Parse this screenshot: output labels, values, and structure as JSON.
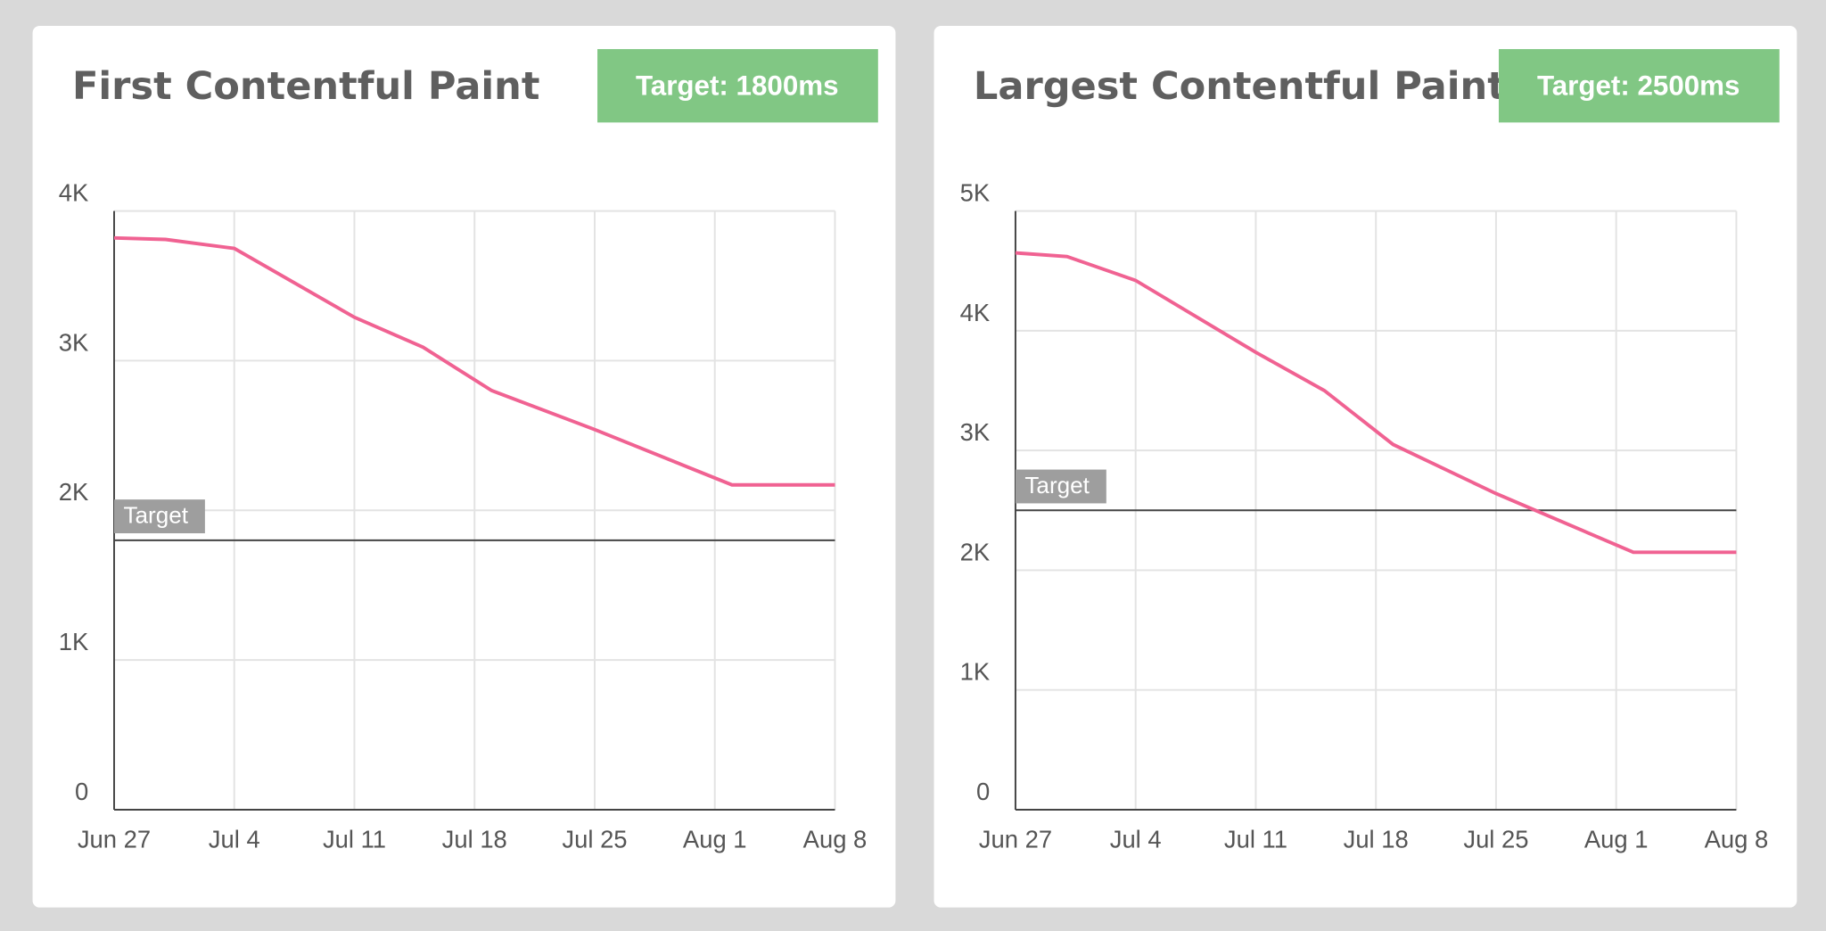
{
  "chart_data": [
    {
      "type": "line",
      "title": "First Contentful Paint",
      "badge": "Target: 1800ms",
      "target": 1800,
      "target_label": "Target",
      "color": "#f06292",
      "x": [
        "Jun 27",
        "Jun 30",
        "Jul 2",
        "Jul 4",
        "Jul 11",
        "Jul 15",
        "Jul 19",
        "Jul 25",
        "Aug 2",
        "Aug 8"
      ],
      "values": [
        3820,
        3810,
        3780,
        3750,
        3290,
        3090,
        2800,
        2540,
        2170,
        2170
      ],
      "xlim": [
        "Jun 27",
        "Aug 8"
      ],
      "xticks": [
        "Jun 27",
        "Jul 4",
        "Jul 11",
        "Jul 18",
        "Jul 25",
        "Aug 1",
        "Aug 8"
      ],
      "ylim": [
        0,
        4000
      ],
      "yticks": [
        0,
        {
          "value": 1000,
          "label": "1K"
        },
        {
          "value": 2000,
          "label": "2K"
        },
        {
          "value": 3000,
          "label": "3K"
        },
        {
          "value": 4000,
          "label": "4K"
        }
      ],
      "grid": true
    },
    {
      "type": "line",
      "title": "Largest Contentful Paint",
      "badge": "Target: 2500ms",
      "target": 2500,
      "target_label": "Target",
      "color": "#f06292",
      "x": [
        "Jun 27",
        "Jun 30",
        "Jul 2",
        "Jul 4",
        "Jul 11",
        "Jul 15",
        "Jul 19",
        "Jul 25",
        "Aug 2",
        "Aug 8"
      ],
      "values": [
        4650,
        4620,
        4520,
        4420,
        3820,
        3500,
        3050,
        2640,
        2150,
        2150
      ],
      "xlim": [
        "Jun 27",
        "Aug 8"
      ],
      "xticks": [
        "Jun 27",
        "Jul 4",
        "Jul 11",
        "Jul 18",
        "Jul 25",
        "Aug 1",
        "Aug 8"
      ],
      "ylim": [
        0,
        5000
      ],
      "yticks": [
        0,
        {
          "value": 1000,
          "label": "1K"
        },
        {
          "value": 2000,
          "label": "2K"
        },
        {
          "value": 3000,
          "label": "3K"
        },
        {
          "value": 4000,
          "label": "4K"
        },
        {
          "value": 5000,
          "label": "5K"
        }
      ],
      "grid": true
    }
  ]
}
